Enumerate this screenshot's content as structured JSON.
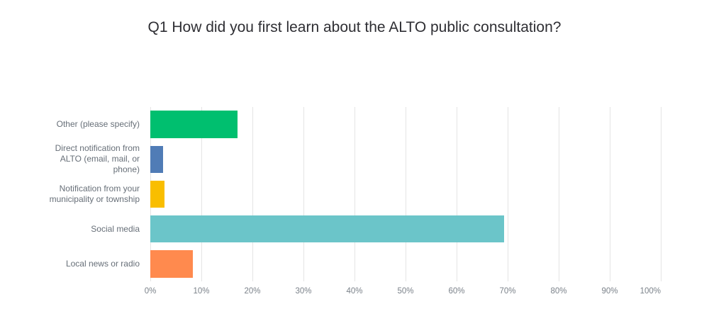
{
  "title": "Q1 How did you first learn about the ALTO public consultation?",
  "chart_data": {
    "type": "bar",
    "orientation": "horizontal",
    "title": "Q1 How did you first learn about the ALTO public consultation?",
    "categories": [
      "Other (please specify)",
      "Direct notification from ALTO (email, mail, or phone)",
      "Notification from your municipality or township",
      "Social media",
      "Local news or radio"
    ],
    "values": [
      17.1,
      2.5,
      2.8,
      69.3,
      8.3
    ],
    "colors": [
      "#00BF6F",
      "#507CB6",
      "#F9BE00",
      "#6BC5C9",
      "#FF8A4E"
    ],
    "xlabel": "",
    "ylabel": "",
    "xlim": [
      0,
      100
    ],
    "x_ticks": [
      "0%",
      "10%",
      "20%",
      "30%",
      "40%",
      "50%",
      "60%",
      "70%",
      "80%",
      "90%",
      "100%"
    ],
    "grid": true,
    "legend": false,
    "unit": "percent"
  },
  "styles": {
    "background": "#ffffff",
    "grid_color": "#e4e4e4",
    "title_color": "#2e2e33",
    "category_label_color": "#676f78",
    "tick_label_color": "#7b828a"
  }
}
